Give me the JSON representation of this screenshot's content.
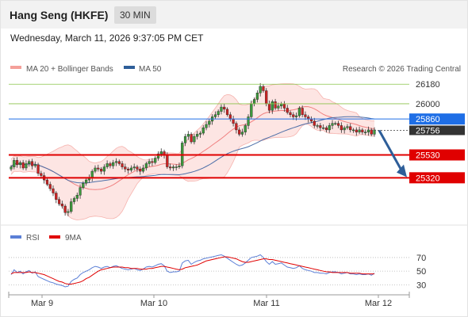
{
  "header": {
    "title": "Hang Seng (HKFE)",
    "timeframe": "30 MIN",
    "datetime": "Wednesday, March 11, 2026 9:37:05 PM CET"
  },
  "chart_data": [
    {
      "type": "candlestick",
      "title": "Hang Seng (HKFE)",
      "legend": [
        {
          "label": "MA 20 + Bollinger Bands",
          "color": "#f08080"
        },
        {
          "label": "MA 50",
          "color": "#2e5e99"
        }
      ],
      "credit": "Research © 2026 Trading Central",
      "x_ticks": [
        "Mar 9",
        "Mar 10",
        "Mar 11",
        "Mar 12"
      ],
      "levels": [
        {
          "value": 26180,
          "label": "26180",
          "kind": "resistance",
          "color": "#8bc34a"
        },
        {
          "value": 26000,
          "label": "26000",
          "kind": "resistance",
          "color": "#8bc34a"
        },
        {
          "value": 25860,
          "label": "25860",
          "kind": "pivot",
          "color": "#1e6ee6"
        },
        {
          "value": 25756,
          "label": "25756",
          "kind": "last",
          "color": "#333333"
        },
        {
          "value": 25530,
          "label": "25530",
          "kind": "support",
          "color": "#e00000"
        },
        {
          "value": 25320,
          "label": "25320",
          "kind": "support",
          "color": "#e00000"
        }
      ],
      "y_range": [
        24900,
        26240
      ],
      "closes": [
        25420,
        25480,
        25440,
        25460,
        25410,
        25450,
        25470,
        25430,
        25440,
        25360,
        25340,
        25300,
        25260,
        25220,
        25180,
        25120,
        25080,
        25060,
        25000,
        25010,
        25100,
        25130,
        25160,
        25230,
        25270,
        25300,
        25320,
        25380,
        25410,
        25400,
        25380,
        25420,
        25450,
        25430,
        25460,
        25470,
        25450,
        25420,
        25400,
        25390,
        25410,
        25420,
        25400,
        25380,
        25410,
        25450,
        25470,
        25460,
        25500,
        25540,
        25560,
        25530,
        25420,
        25410,
        25420,
        25420,
        25430,
        25640,
        25700,
        25720,
        25650,
        25700,
        25720,
        25730,
        25780,
        25810,
        25840,
        25880,
        25900,
        25930,
        25970,
        25950,
        25900,
        25860,
        25820,
        25760,
        25720,
        25740,
        25800,
        25880,
        26000,
        26040,
        26100,
        26160,
        26120,
        26000,
        25940,
        26020,
        25960,
        25980,
        26000,
        25960,
        25920,
        25900,
        25880,
        25890,
        25960,
        25900,
        25880,
        25860,
        25840,
        25800,
        25800,
        25780,
        25780,
        25760,
        25800,
        25820,
        25820,
        25800,
        25760,
        25780,
        25790,
        25760,
        25760,
        25740,
        25760,
        25740,
        25740,
        25760,
        25720,
        25760
      ],
      "trend_arrow": {
        "from": 25756,
        "to": 25340,
        "direction": "down"
      }
    },
    {
      "type": "line",
      "legend": [
        {
          "label": "RSI",
          "color": "#5b7fd6"
        },
        {
          "label": "9MA",
          "color": "#e00000"
        }
      ],
      "y_ticks": [
        70,
        50,
        30
      ],
      "y_range": [
        20,
        85
      ],
      "series": [
        {
          "name": "RSI",
          "values": [
            45,
            52,
            48,
            50,
            46,
            49,
            51,
            47,
            49,
            42,
            40,
            38,
            36,
            34,
            33,
            31,
            30,
            29,
            27,
            28,
            35,
            38,
            40,
            45,
            48,
            50,
            52,
            55,
            57,
            56,
            54,
            56,
            57,
            55,
            57,
            58,
            56,
            54,
            53,
            52,
            53,
            54,
            52,
            51,
            53,
            56,
            57,
            56,
            58,
            60,
            61,
            58,
            50,
            48,
            49,
            49,
            50,
            62,
            65,
            66,
            60,
            63,
            65,
            66,
            68,
            69,
            70,
            71,
            72,
            73,
            74,
            72,
            69,
            66,
            63,
            60,
            58,
            59,
            62,
            66,
            70,
            71,
            72,
            74,
            70,
            64,
            60,
            64,
            60,
            61,
            62,
            59,
            56,
            55,
            54,
            55,
            58,
            54,
            52,
            51,
            50,
            48,
            48,
            47,
            47,
            46,
            48,
            49,
            49,
            48,
            46,
            47,
            48,
            46,
            46,
            45,
            46,
            45,
            45,
            46,
            44,
            47
          ]
        },
        {
          "name": "9MA",
          "values": [
            46,
            48,
            48,
            48,
            48,
            48,
            49,
            48,
            48,
            47,
            46,
            45,
            43,
            41,
            39,
            37,
            35,
            34,
            32,
            31,
            31,
            32,
            33,
            34,
            36,
            39,
            41,
            44,
            47,
            50,
            52,
            53,
            54,
            55,
            56,
            56,
            56,
            56,
            55,
            55,
            54,
            54,
            54,
            53,
            53,
            53,
            54,
            54,
            55,
            56,
            57,
            57,
            56,
            55,
            54,
            53,
            52,
            53,
            55,
            56,
            57,
            58,
            59,
            61,
            63,
            65,
            66,
            67,
            68,
            69,
            70,
            71,
            71,
            70,
            69,
            68,
            66,
            64,
            63,
            63,
            64,
            65,
            66,
            67,
            68,
            68,
            67,
            67,
            66,
            65,
            64,
            63,
            62,
            61,
            60,
            59,
            58,
            57,
            56,
            55,
            54,
            53,
            52,
            51,
            50,
            49,
            49,
            48,
            48,
            48,
            48,
            48,
            48,
            47,
            47,
            47,
            47,
            46,
            46,
            46,
            46,
            46
          ]
        }
      ]
    }
  ]
}
